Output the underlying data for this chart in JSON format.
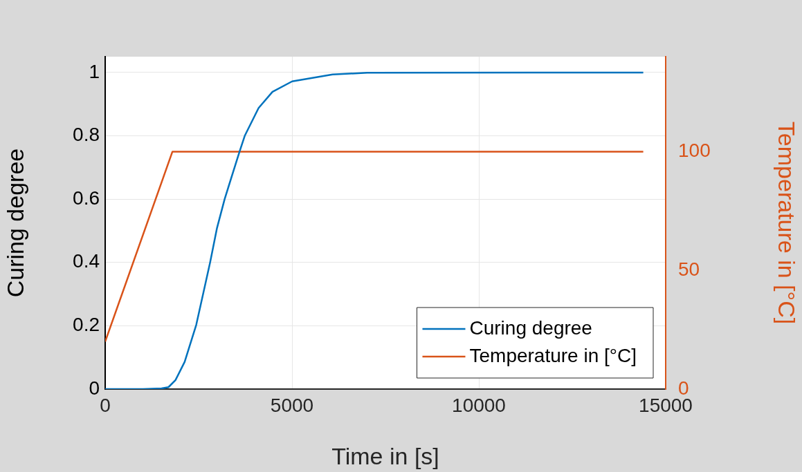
{
  "chart_data": {
    "type": "line",
    "xlabel": "Time in [s]",
    "ylabel": "Curing degree",
    "y2label": "Temperature in [°C]",
    "xlim": [
      0,
      15000
    ],
    "xticks": [
      0,
      5000,
      10000,
      15000
    ],
    "ylim": [
      0,
      1.05
    ],
    "yticks": [
      0,
      0.2,
      0.4,
      0.6,
      0.8,
      1
    ],
    "y2lim": [
      0,
      140
    ],
    "y2ticks": [
      0,
      50,
      100
    ],
    "grid": true,
    "legend": "bottom right",
    "marker": "none",
    "line_style": "solid",
    "series": [
      {
        "name": "Curing degree",
        "color": "#0072bd",
        "x": [
          0,
          1014,
          1509,
          1694,
          1880,
          2127,
          2437,
          2684,
          2808,
          2993,
          3197,
          3395,
          3593,
          3735,
          4106,
          4477,
          5003,
          6085,
          7013,
          14400
        ],
        "values": [
          0,
          0,
          0.002,
          0.006,
          0.028,
          0.086,
          0.203,
          0.334,
          0.4,
          0.509,
          0.6,
          0.675,
          0.749,
          0.8,
          0.888,
          0.939,
          0.972,
          0.994,
          0.999,
          1
        ]
      },
      {
        "name": "Temperature in [°C]",
        "color": "#d95319",
        "axis": "y2",
        "x": [
          0,
          1800,
          14400
        ],
        "values": [
          20,
          100,
          100
        ]
      }
    ]
  }
}
